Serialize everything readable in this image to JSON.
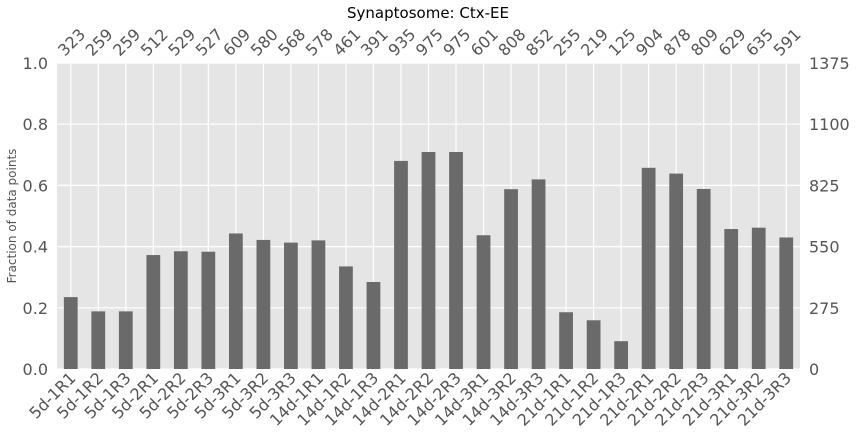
{
  "chart_data": {
    "type": "bar",
    "title": "Synaptosome: Ctx-EE",
    "xlabel": "",
    "ylabel": "Fraction of data points",
    "categories": [
      "5d-1R1",
      "5d-1R2",
      "5d-1R3",
      "5d-2R1",
      "5d-2R2",
      "5d-2R3",
      "5d-3R1",
      "5d-3R2",
      "5d-3R3",
      "14d-1R1",
      "14d-1R2",
      "14d-1R3",
      "14d-2R1",
      "14d-2R2",
      "14d-2R3",
      "14d-3R1",
      "14d-3R2",
      "14d-3R3",
      "21d-1R1",
      "21d-1R2",
      "21d-1R3",
      "21d-2R1",
      "21d-2R2",
      "21d-2R3",
      "21d-3R1",
      "21d-3R2",
      "21d-3R3"
    ],
    "counts": [
      323,
      259,
      259,
      512,
      529,
      527,
      609,
      580,
      568,
      578,
      461,
      391,
      935,
      975,
      975,
      601,
      808,
      852,
      255,
      219,
      125,
      904,
      878,
      809,
      629,
      635,
      591
    ],
    "ylim": [
      0,
      1.0
    ],
    "yticks": [
      "0.0",
      "0.2",
      "0.4",
      "0.6",
      "0.8",
      "1.0"
    ],
    "right_ylim": [
      0,
      1375
    ],
    "right_yticks": [
      "0",
      "275",
      "550",
      "825",
      "1100",
      "1375"
    ],
    "grid": true,
    "bar_color": "#6a6a6a",
    "background_color": "#e5e5e5"
  }
}
